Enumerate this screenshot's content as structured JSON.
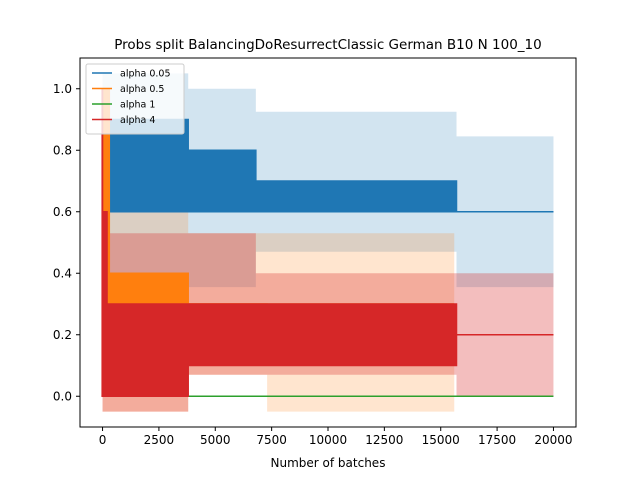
{
  "chart_data": {
    "type": "line",
    "title": "Probs split BalancingDoResurrectClassic German B10 N 100_10",
    "xlabel": "Number of batches",
    "ylabel": "",
    "xlim": [
      -1000,
      21000
    ],
    "ylim": [
      -0.1,
      1.1
    ],
    "xticks": [
      0,
      2500,
      5000,
      7500,
      10000,
      12500,
      15000,
      17500,
      20000
    ],
    "yticks": [
      0.0,
      0.2,
      0.4,
      0.6,
      0.8,
      1.0
    ],
    "grid": false,
    "legend_position": "top-left",
    "series": [
      {
        "name": "alpha 0.05",
        "color": "#1f77b4",
        "band_alpha": 0.2,
        "lines": [
          {
            "x": [
              0,
              100,
              100,
              3800,
              3800,
              6800,
              6800,
              15700,
              15700,
              20000
            ],
            "y": [
              1.0,
              1.0,
              0.9,
              0.9,
              0.8,
              0.8,
              0.7,
              0.7,
              0.6,
              0.6
            ]
          },
          {
            "x": [
              0,
              100,
              100,
              3800,
              3800,
              6800,
              6800,
              15700,
              15700,
              20000
            ],
            "y": [
              0.6,
              0.6,
              0.6,
              0.6,
              0.6,
              0.6,
              0.6,
              0.6,
              0.6,
              0.6
            ]
          }
        ],
        "bands": [
          {
            "x": [
              0,
              100,
              100,
              3800,
              3800,
              6800,
              6800,
              15700,
              15700,
              20000
            ],
            "upper": [
              1.05,
              1.05,
              1.05,
              1.05,
              1.0,
              1.0,
              0.925,
              0.925,
              0.845,
              0.845
            ],
            "lower": [
              0.4,
              0.4,
              0.4,
              0.4,
              0.355,
              0.355,
              0.47,
              0.47,
              0.355,
              0.355
            ]
          }
        ]
      },
      {
        "name": "alpha 0.5",
        "color": "#ff7f0e",
        "band_alpha": 0.2,
        "lines": [
          {
            "x": [
              0,
              300,
              300,
              3800,
              3800,
              7300,
              7300,
              15600
            ],
            "y": [
              1.0,
              1.0,
              0.4,
              0.4,
              0.3,
              0.3,
              0.2,
              0.2
            ]
          },
          {
            "x": [
              0,
              300,
              300,
              3800,
              3800,
              7300,
              7300,
              15600
            ],
            "y": [
              0.0,
              0.0,
              0.2,
              0.2,
              0.3,
              0.3,
              0.3,
              0.3
            ]
          }
        ],
        "bands": [
          {
            "x": [
              0,
              300,
              300,
              3800,
              3800,
              7300,
              7300,
              15600
            ],
            "upper": [
              1.0,
              1.0,
              0.6,
              0.6,
              0.53,
              0.53,
              0.53,
              0.53
            ],
            "lower": [
              -0.05,
              -0.05,
              -0.05,
              -0.05,
              0.07,
              0.07,
              -0.05,
              -0.05
            ]
          }
        ]
      },
      {
        "name": "alpha 1",
        "color": "#2ca02c",
        "band_alpha": 0.2,
        "lines": [
          {
            "x": [
              3800,
              20000
            ],
            "y": [
              0.0,
              0.0
            ]
          }
        ],
        "bands": []
      },
      {
        "name": "alpha 4",
        "color": "#d62728",
        "band_alpha": 0.3,
        "lines": [
          {
            "x": [
              -50,
              0,
              0,
              200,
              200,
              3800,
              3800,
              15700,
              15700,
              20000
            ],
            "y": [
              1.0,
              1.0,
              0.6,
              0.6,
              0.3,
              0.3,
              0.3,
              0.3,
              0.2,
              0.2
            ]
          },
          {
            "x": [
              -50,
              0,
              0,
              200,
              200,
              3800,
              3800,
              15700,
              15700,
              20000
            ],
            "y": [
              0.0,
              0.0,
              0.0,
              0.0,
              0.0,
              0.0,
              0.1,
              0.1,
              0.2,
              0.2
            ]
          }
        ],
        "bands": [
          {
            "x": [
              0,
              200,
              200,
              3800,
              3800,
              6800,
              6800,
              15700,
              15700,
              20000
            ],
            "upper": [
              0.53,
              0.53,
              0.53,
              0.53,
              0.53,
              0.53,
              0.4,
              0.4,
              0.4,
              0.4
            ],
            "lower": [
              -0.05,
              -0.05,
              -0.05,
              -0.05,
              0.07,
              0.07,
              0.07,
              0.07,
              0.0,
              0.0
            ]
          }
        ]
      }
    ]
  }
}
